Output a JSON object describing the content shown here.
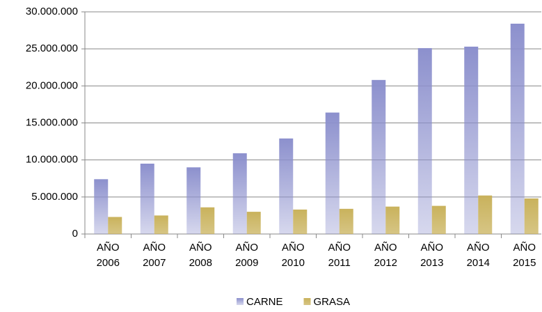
{
  "chart_data": {
    "type": "bar",
    "categories": [
      "AÑO 2006",
      "AÑO 2007",
      "AÑO 2008",
      "AÑO 2009",
      "AÑO 2010",
      "AÑO 2011",
      "AÑO 2012",
      "AÑO 2013",
      "AÑO 2014",
      "AÑO 2015"
    ],
    "series": [
      {
        "name": "CARNE",
        "color": "#8c90cd",
        "values": [
          7400000,
          9500000,
          9000000,
          10900000,
          12900000,
          16400000,
          20800000,
          25100000,
          25300000,
          28400000
        ]
      },
      {
        "name": "GRASA",
        "color": "#c9b25c",
        "values": [
          2300000,
          2500000,
          3600000,
          3000000,
          3300000,
          3400000,
          3700000,
          3800000,
          5200000,
          4800000
        ]
      }
    ],
    "ylim": [
      0,
      30000000
    ],
    "yticks": [
      0,
      {
        "value": 5000000,
        "label": "5.000.000"
      },
      {
        "value": 10000000,
        "label": "10.000.000"
      },
      {
        "value": 15000000,
        "label": "15.000.000"
      },
      {
        "value": 20000000,
        "label": "20.000.000"
      },
      {
        "value": 25000000,
        "label": "25.000.000"
      },
      {
        "value": 30000000,
        "label": "30.000.000"
      }
    ],
    "grid": true,
    "legend": "bottom"
  }
}
